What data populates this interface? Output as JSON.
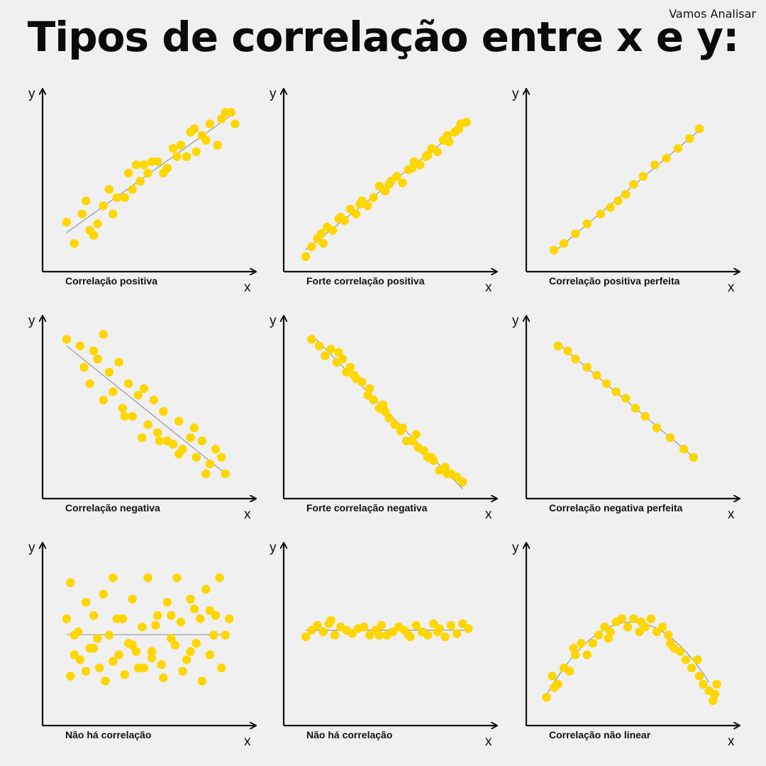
{
  "title": "Tipos de correlação entre x e y:",
  "brand": "Vamos Analisar",
  "colors": {
    "dot": "#FFD600",
    "axis": "#111111",
    "trend": "#999999"
  },
  "chart_data": [
    {
      "type": "scatter",
      "title": "Correlação positiva",
      "xlabel": "x",
      "ylabel": "y",
      "trend": "line",
      "x": [
        0.08,
        0.12,
        0.16,
        0.2,
        0.24,
        0.27,
        0.32,
        0.34,
        0.38,
        0.42,
        0.46,
        0.5,
        0.55,
        0.58,
        0.63,
        0.67,
        0.7,
        0.72,
        0.75,
        0.8,
        0.82,
        0.86,
        0.9,
        0.95,
        0.22,
        0.3,
        0.4,
        0.48,
        0.52,
        0.6,
        0.65,
        0.74,
        0.78,
        0.88,
        0.93,
        0.18,
        0.44
      ],
      "y": [
        0.25,
        0.12,
        0.3,
        0.2,
        0.24,
        0.35,
        0.3,
        0.4,
        0.4,
        0.45,
        0.5,
        0.55,
        0.62,
        0.55,
        0.7,
        0.72,
        0.65,
        0.8,
        0.68,
        0.75,
        0.85,
        0.72,
        0.92,
        0.85,
        0.17,
        0.45,
        0.55,
        0.6,
        0.62,
        0.58,
        0.65,
        0.82,
        0.78,
        0.88,
        0.92,
        0.38,
        0.6
      ]
    },
    {
      "type": "scatter",
      "title": "Forte correlação positiva",
      "xlabel": "x",
      "ylabel": "y",
      "trend": "line",
      "x": [
        0.07,
        0.1,
        0.13,
        0.16,
        0.18,
        0.21,
        0.24,
        0.27,
        0.3,
        0.33,
        0.36,
        0.39,
        0.42,
        0.45,
        0.48,
        0.51,
        0.54,
        0.57,
        0.6,
        0.63,
        0.66,
        0.69,
        0.72,
        0.75,
        0.78,
        0.81,
        0.84,
        0.87,
        0.9,
        0.15,
        0.25,
        0.35,
        0.5,
        0.62,
        0.7,
        0.8,
        0.86
      ],
      "y": [
        0.04,
        0.1,
        0.15,
        0.12,
        0.22,
        0.2,
        0.27,
        0.26,
        0.33,
        0.3,
        0.38,
        0.35,
        0.4,
        0.47,
        0.44,
        0.5,
        0.53,
        0.49,
        0.57,
        0.62,
        0.6,
        0.65,
        0.7,
        0.68,
        0.75,
        0.74,
        0.8,
        0.85,
        0.86,
        0.18,
        0.28,
        0.36,
        0.48,
        0.58,
        0.66,
        0.78,
        0.82
      ]
    },
    {
      "type": "scatter",
      "title": "Correlação positiva perfeita",
      "xlabel": "x",
      "ylabel": "y",
      "trend": "line",
      "x": [
        0.1,
        0.15,
        0.21,
        0.27,
        0.34,
        0.39,
        0.43,
        0.47,
        0.51,
        0.56,
        0.62,
        0.68,
        0.74,
        0.8,
        0.85
      ],
      "y": [
        0.08,
        0.12,
        0.18,
        0.24,
        0.3,
        0.34,
        0.38,
        0.42,
        0.48,
        0.53,
        0.6,
        0.64,
        0.7,
        0.76,
        0.82
      ]
    }
  ],
  "panels": [
    {
      "title": "Correlação positiva",
      "xlabel": "x",
      "ylabel": "y"
    },
    {
      "title": "Forte correlação positiva",
      "xlabel": "x",
      "ylabel": "y"
    },
    {
      "title": "Correlação positiva perfeita",
      "xlabel": "x",
      "ylabel": "y"
    },
    {
      "title": "Correlação negativa",
      "xlabel": "x",
      "ylabel": "y"
    },
    {
      "title": "Forte correlação negativa",
      "xlabel": "x",
      "ylabel": "y"
    },
    {
      "title": "Correlação negativa perfeita",
      "xlabel": "x",
      "ylabel": "y"
    },
    {
      "title": "Não há correlação",
      "xlabel": "x",
      "ylabel": "y"
    },
    {
      "title": "Não há correlação",
      "xlabel": "x",
      "ylabel": "y"
    },
    {
      "title": "Correlação não linear",
      "xlabel": "x",
      "ylabel": "y"
    }
  ],
  "series_bottom": [
    {
      "type": "scatter",
      "title": "Correlação negativa",
      "trend": "line",
      "x": [
        0.08,
        0.15,
        0.17,
        0.22,
        0.24,
        0.27,
        0.3,
        0.32,
        0.35,
        0.37,
        0.4,
        0.42,
        0.45,
        0.48,
        0.5,
        0.53,
        0.55,
        0.58,
        0.6,
        0.63,
        0.66,
        0.68,
        0.72,
        0.75,
        0.78,
        0.8,
        0.82,
        0.85,
        0.88,
        0.9,
        0.2,
        0.27,
        0.38,
        0.47,
        0.56,
        0.66,
        0.74
      ],
      "y": [
        0.92,
        0.88,
        0.75,
        0.85,
        0.8,
        0.95,
        0.72,
        0.6,
        0.78,
        0.5,
        0.65,
        0.45,
        0.58,
        0.62,
        0.4,
        0.55,
        0.35,
        0.48,
        0.3,
        0.28,
        0.42,
        0.25,
        0.32,
        0.2,
        0.3,
        0.1,
        0.16,
        0.25,
        0.2,
        0.1,
        0.65,
        0.55,
        0.45,
        0.32,
        0.3,
        0.22,
        0.38
      ]
    },
    {
      "type": "scatter",
      "title": "Forte correlação negativa",
      "trend": "line",
      "x": [
        0.1,
        0.14,
        0.17,
        0.2,
        0.23,
        0.26,
        0.28,
        0.3,
        0.33,
        0.36,
        0.39,
        0.42,
        0.45,
        0.48,
        0.5,
        0.53,
        0.56,
        0.59,
        0.62,
        0.65,
        0.68,
        0.7,
        0.73,
        0.76,
        0.79,
        0.82,
        0.85,
        0.88,
        0.24,
        0.32,
        0.4,
        0.47,
        0.57,
        0.64,
        0.72,
        0.8
      ],
      "y": [
        0.92,
        0.88,
        0.82,
        0.86,
        0.78,
        0.8,
        0.72,
        0.75,
        0.68,
        0.66,
        0.58,
        0.55,
        0.5,
        0.48,
        0.44,
        0.4,
        0.36,
        0.3,
        0.3,
        0.26,
        0.24,
        0.2,
        0.18,
        0.12,
        0.14,
        0.1,
        0.08,
        0.05,
        0.84,
        0.7,
        0.62,
        0.52,
        0.38,
        0.34,
        0.2,
        0.1
      ]
    },
    {
      "type": "scatter",
      "title": "Correlação negativa perfeita",
      "trend": "line",
      "x": [
        0.12,
        0.17,
        0.21,
        0.27,
        0.32,
        0.37,
        0.42,
        0.47,
        0.52,
        0.57,
        0.63,
        0.7,
        0.77,
        0.82
      ],
      "y": [
        0.88,
        0.85,
        0.8,
        0.75,
        0.7,
        0.65,
        0.6,
        0.56,
        0.5,
        0.45,
        0.38,
        0.32,
        0.25,
        0.2
      ]
    },
    {
      "type": "scatter",
      "title": "Não há correlação",
      "trend": "flat",
      "x": [
        0.08,
        0.1,
        0.12,
        0.15,
        0.18,
        0.2,
        0.22,
        0.25,
        0.27,
        0.3,
        0.32,
        0.35,
        0.37,
        0.4,
        0.42,
        0.45,
        0.47,
        0.5,
        0.52,
        0.55,
        0.57,
        0.6,
        0.62,
        0.65,
        0.67,
        0.7,
        0.72,
        0.75,
        0.77,
        0.8,
        0.82,
        0.85,
        0.87,
        0.9,
        0.1,
        0.18,
        0.28,
        0.38,
        0.48,
        0.58,
        0.68,
        0.78,
        0.88,
        0.14,
        0.24,
        0.34,
        0.44,
        0.54,
        0.64,
        0.74,
        0.84,
        0.92,
        0.12,
        0.22,
        0.32,
        0.42,
        0.52,
        0.62,
        0.72,
        0.82
      ],
      "y": [
        0.6,
        0.82,
        0.5,
        0.35,
        0.7,
        0.42,
        0.62,
        0.3,
        0.75,
        0.5,
        0.85,
        0.38,
        0.6,
        0.45,
        0.72,
        0.3,
        0.55,
        0.85,
        0.4,
        0.62,
        0.32,
        0.7,
        0.48,
        0.85,
        0.58,
        0.35,
        0.72,
        0.45,
        0.6,
        0.78,
        0.38,
        0.62,
        0.85,
        0.5,
        0.25,
        0.28,
        0.22,
        0.26,
        0.3,
        0.24,
        0.28,
        0.22,
        0.3,
        0.52,
        0.48,
        0.6,
        0.4,
        0.56,
        0.44,
        0.66,
        0.5,
        0.6,
        0.38,
        0.42,
        0.34,
        0.44,
        0.36,
        0.62,
        0.4,
        0.65
      ]
    },
    {
      "type": "scatter",
      "title": "Não há correlação",
      "trend": "flat",
      "x": [
        0.07,
        0.1,
        0.13,
        0.16,
        0.19,
        0.22,
        0.25,
        0.28,
        0.31,
        0.34,
        0.37,
        0.4,
        0.43,
        0.46,
        0.49,
        0.52,
        0.55,
        0.58,
        0.61,
        0.64,
        0.67,
        0.7,
        0.73,
        0.76,
        0.79,
        0.82,
        0.85,
        0.88,
        0.91,
        0.2,
        0.45,
        0.6,
        0.75
      ],
      "y": [
        0.49,
        0.53,
        0.56,
        0.52,
        0.57,
        0.5,
        0.55,
        0.53,
        0.51,
        0.54,
        0.55,
        0.5,
        0.53,
        0.56,
        0.5,
        0.52,
        0.55,
        0.53,
        0.49,
        0.56,
        0.52,
        0.5,
        0.57,
        0.54,
        0.49,
        0.56,
        0.51,
        0.57,
        0.54,
        0.59,
        0.5,
        0.5,
        0.52
      ]
    },
    {
      "type": "scatter",
      "title": "Correlação não linear",
      "trend": "curve",
      "x": [
        0.06,
        0.09,
        0.12,
        0.15,
        0.18,
        0.21,
        0.24,
        0.27,
        0.3,
        0.33,
        0.36,
        0.39,
        0.42,
        0.45,
        0.48,
        0.51,
        0.54,
        0.57,
        0.6,
        0.63,
        0.66,
        0.69,
        0.72,
        0.75,
        0.78,
        0.81,
        0.84,
        0.87,
        0.9,
        0.92,
        0.94,
        0.1,
        0.2,
        0.38,
        0.55,
        0.7,
        0.85,
        0.93
      ],
      "y": [
        0.12,
        0.25,
        0.2,
        0.3,
        0.28,
        0.38,
        0.45,
        0.38,
        0.45,
        0.5,
        0.55,
        0.52,
        0.58,
        0.6,
        0.55,
        0.6,
        0.52,
        0.55,
        0.6,
        0.52,
        0.55,
        0.5,
        0.42,
        0.4,
        0.35,
        0.3,
        0.35,
        0.2,
        0.16,
        0.1,
        0.2,
        0.18,
        0.42,
        0.48,
        0.58,
        0.45,
        0.25,
        0.14
      ]
    }
  ]
}
